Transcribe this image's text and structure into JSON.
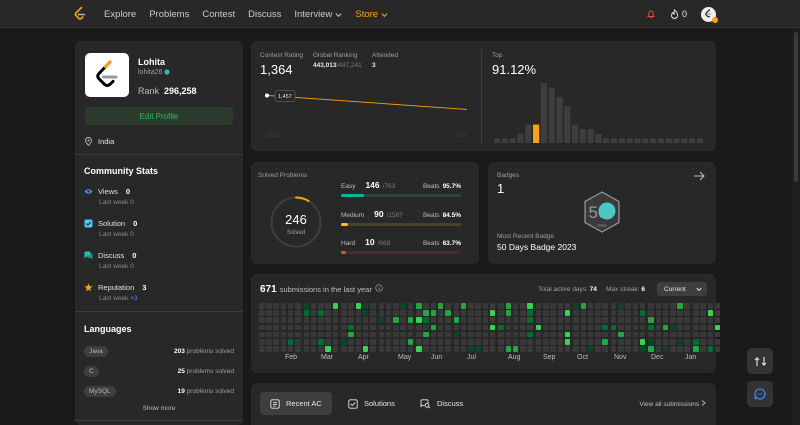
{
  "nav": {
    "items": [
      {
        "label": "Explore"
      },
      {
        "label": "Problems"
      },
      {
        "label": "Contest"
      },
      {
        "label": "Discuss"
      },
      {
        "label": "Interview"
      },
      {
        "label": "Store"
      }
    ],
    "streak_count": "0"
  },
  "profile": {
    "name": "Lohita",
    "username": "lohita26",
    "rank_label": "Rank",
    "rank_value": "296,258",
    "edit_label": "Edit Profile",
    "location": "India"
  },
  "community": {
    "title": "Community Stats",
    "stats": [
      {
        "label": "Views",
        "value": "0",
        "sub_label": "Last week",
        "sub_value": "0",
        "color": "#4d8df7"
      },
      {
        "label": "Solution",
        "value": "0",
        "sub_label": "Last week",
        "sub_value": "0",
        "color": "#4dc6f7"
      },
      {
        "label": "Discuss",
        "value": "0",
        "sub_label": "Last week",
        "sub_value": "0",
        "color": "#2cbbab"
      },
      {
        "label": "Reputation",
        "value": "3",
        "sub_label": "Last week",
        "sub_value": "+3",
        "color": "#ffa116"
      }
    ]
  },
  "languages": {
    "title": "Languages",
    "items": [
      {
        "name": "Java",
        "count": "203",
        "suffix": "problems solved"
      },
      {
        "name": "C",
        "count": "25",
        "suffix": "problems solved"
      },
      {
        "name": "MySQL",
        "count": "19",
        "suffix": "problems solved"
      }
    ],
    "show_more": "Show more"
  },
  "contest": {
    "rating_label": "Contest Rating",
    "rating_value": "1,364",
    "global_label": "Global Ranking",
    "global_value": "443,013",
    "global_total": "/487,241",
    "attended_label": "Attended",
    "attended_value": "3",
    "tooltip_value": "1,457",
    "x_start": "2023",
    "x_end": "2023",
    "top_label": "Top",
    "top_value": "91.12%",
    "rating_points": [
      1457,
      1364
    ],
    "histogram": [
      1,
      1,
      1,
      2,
      4,
      4,
      13,
      12,
      10,
      8,
      4,
      3,
      3,
      2,
      1,
      1,
      1,
      1,
      1,
      1,
      1,
      1,
      1,
      1,
      1,
      1,
      1
    ],
    "highlight_index": 5,
    "colors": {
      "line": "#ffa116",
      "bar": "#3e3e3e",
      "bar_highlight": "#ffa116"
    }
  },
  "solved": {
    "title": "Solved Problems",
    "total": "246",
    "total_label": "Solved",
    "progress": 0.086,
    "levels": [
      {
        "name": "Easy",
        "solved": "146",
        "total": "/763",
        "beats_label": "Beats",
        "beats": "95.7%",
        "fraction": 0.191,
        "color": "#00b8a3",
        "track": "#2a4440"
      },
      {
        "name": "Medium",
        "solved": "90",
        "total": "/1587",
        "beats_label": "Beats",
        "beats": "84.5%",
        "fraction": 0.057,
        "color": "#ffc01e",
        "track": "#4a4124"
      },
      {
        "name": "Hard",
        "solved": "10",
        "total": "/668",
        "beats_label": "Beats",
        "beats": "63.7%",
        "fraction": 0.015,
        "color": "#ef4743",
        "track": "#4a2a2a"
      }
    ]
  },
  "badges": {
    "title": "Badges",
    "count": "1",
    "recent_label": "Most Recent Badge",
    "recent_name": "50 Days Badge 2023",
    "badge_text": "50"
  },
  "submissions": {
    "count": "671",
    "label": "submissions in the last year",
    "active_days_label": "Total active days:",
    "active_days": "74",
    "max_streak_label": "Max streak:",
    "max_streak": "6",
    "current_label": "Current",
    "months": [
      "Feb",
      "Mar",
      "Apr",
      "May",
      "Jun",
      "Jul",
      "Aug",
      "Sep",
      "Oct",
      "Nov",
      "Dec",
      "Jan"
    ]
  },
  "tabs": {
    "items": [
      {
        "label": "Recent AC"
      },
      {
        "label": "Solutions"
      },
      {
        "label": "Discuss"
      }
    ],
    "view_all": "View all submissions"
  }
}
